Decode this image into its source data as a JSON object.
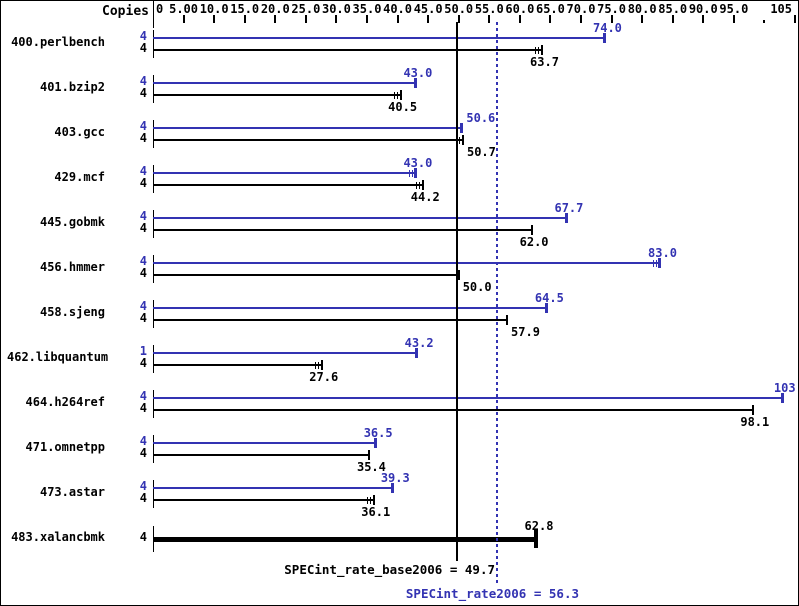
{
  "colors": {
    "peak": "#3333b2",
    "base": "#000000",
    "background": "#ffffff"
  },
  "header": {
    "copies_label": "Copies"
  },
  "chart_data": {
    "type": "bar",
    "orientation": "horizontal",
    "axis": {
      "position": "top",
      "min": 0,
      "max": 105,
      "ticks": [
        {
          "value": 0,
          "label": "0"
        },
        {
          "value": 5,
          "label": "5.00"
        },
        {
          "value": 10,
          "label": "10.0"
        },
        {
          "value": 15,
          "label": "15.0"
        },
        {
          "value": 20,
          "label": "20.0"
        },
        {
          "value": 25,
          "label": "25.0"
        },
        {
          "value": 30,
          "label": "30.0"
        },
        {
          "value": 35,
          "label": "35.0"
        },
        {
          "value": 40,
          "label": "40.0"
        },
        {
          "value": 45,
          "label": "45.0"
        },
        {
          "value": 50,
          "label": "50.0"
        },
        {
          "value": 55,
          "label": "55.0"
        },
        {
          "value": 60,
          "label": "60.0"
        },
        {
          "value": 65,
          "label": "65.0"
        },
        {
          "value": 70,
          "label": "70.0"
        },
        {
          "value": 75,
          "label": "75.0"
        },
        {
          "value": 80,
          "label": "80.0"
        },
        {
          "value": 85,
          "label": "85.0"
        },
        {
          "value": 90,
          "label": "90.0"
        },
        {
          "value": 95,
          "label": "95.0"
        },
        {
          "value": 100,
          "label": ""
        },
        {
          "value": 105,
          "label": "105"
        }
      ]
    },
    "benchmarks": [
      {
        "name": "400.perlbench",
        "peak": {
          "copies": "4",
          "value": 74.0,
          "label": "74.0",
          "whisker": false
        },
        "base": {
          "copies": "4",
          "value": 63.7,
          "label": "63.7",
          "whisker": true
        }
      },
      {
        "name": "401.bzip2",
        "peak": {
          "copies": "4",
          "value": 43.0,
          "label": "43.0",
          "whisker": false
        },
        "base": {
          "copies": "4",
          "value": 40.5,
          "label": "40.5",
          "whisker": true
        }
      },
      {
        "name": "403.gcc",
        "peak": {
          "copies": "4",
          "value": 50.6,
          "label": "50.6",
          "whisker": false
        },
        "base": {
          "copies": "4",
          "value": 50.7,
          "label": "50.7",
          "whisker": true
        }
      },
      {
        "name": "429.mcf",
        "peak": {
          "copies": "4",
          "value": 43.0,
          "label": "43.0",
          "whisker": true
        },
        "base": {
          "copies": "4",
          "value": 44.2,
          "label": "44.2",
          "whisker": true
        }
      },
      {
        "name": "445.gobmk",
        "peak": {
          "copies": "4",
          "value": 67.7,
          "label": "67.7",
          "whisker": false
        },
        "base": {
          "copies": "4",
          "value": 62.0,
          "label": "62.0",
          "whisker": false
        }
      },
      {
        "name": "456.hmmer",
        "peak": {
          "copies": "4",
          "value": 83.0,
          "label": "83.0",
          "whisker": true
        },
        "base": {
          "copies": "4",
          "value": 50.0,
          "label": "50.0",
          "whisker": false
        }
      },
      {
        "name": "458.sjeng",
        "peak": {
          "copies": "4",
          "value": 64.5,
          "label": "64.5",
          "whisker": false
        },
        "base": {
          "copies": "4",
          "value": 57.9,
          "label": "57.9",
          "whisker": false
        }
      },
      {
        "name": "462.libquantum",
        "peak": {
          "copies": "1",
          "value": 43.2,
          "label": "43.2",
          "whisker": false
        },
        "base": {
          "copies": "4",
          "value": 27.6,
          "label": "27.6",
          "whisker": true
        }
      },
      {
        "name": "464.h264ref",
        "peak": {
          "copies": "4",
          "value": 103,
          "label": "103",
          "whisker": false
        },
        "base": {
          "copies": "4",
          "value": 98.1,
          "label": "98.1",
          "whisker": false
        }
      },
      {
        "name": "471.omnetpp",
        "peak": {
          "copies": "4",
          "value": 36.5,
          "label": "36.5",
          "whisker": false
        },
        "base": {
          "copies": "4",
          "value": 35.4,
          "label": "35.4",
          "whisker": false
        }
      },
      {
        "name": "473.astar",
        "peak": {
          "copies": "4",
          "value": 39.3,
          "label": "39.3",
          "whisker": false
        },
        "base": {
          "copies": "4",
          "value": 36.1,
          "label": "36.1",
          "whisker": true
        }
      },
      {
        "name": "483.xalancbmk",
        "base": {
          "copies": "4",
          "value": 62.8,
          "label": "62.8",
          "whisker": false,
          "thick": true
        }
      }
    ],
    "reference_lines": [
      {
        "name": "base",
        "label": "SPECint_rate_base2006 = 49.7",
        "value": 49.7,
        "style": "solid",
        "color": "#000000"
      },
      {
        "name": "peak",
        "label": "SPECint_rate2006 = 56.3",
        "value": 56.3,
        "style": "dotted",
        "color": "#3333b2"
      }
    ]
  }
}
